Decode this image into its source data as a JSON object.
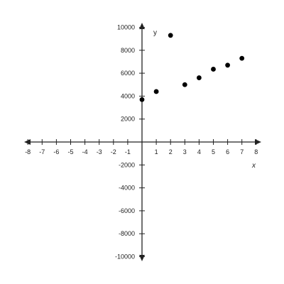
{
  "chart_data": {
    "type": "scatter",
    "xlabel": "x",
    "ylabel": "y",
    "xlim": [
      -8,
      8
    ],
    "ylim": [
      -10000,
      10000
    ],
    "x_ticks": [
      -8,
      -7,
      -6,
      -5,
      -4,
      -3,
      -2,
      -1,
      1,
      2,
      3,
      4,
      5,
      6,
      7,
      8
    ],
    "y_ticks": [
      -10000,
      -8000,
      -6000,
      -4000,
      -2000,
      2000,
      4000,
      6000,
      8000,
      10000
    ],
    "points": [
      {
        "x": 0,
        "y": 3700
      },
      {
        "x": 1,
        "y": 4400
      },
      {
        "x": 2,
        "y": 9300
      },
      {
        "x": 3,
        "y": 5000
      },
      {
        "x": 4,
        "y": 5600
      },
      {
        "x": 5,
        "y": 6350
      },
      {
        "x": 6,
        "y": 6700
      },
      {
        "x": 7,
        "y": 7300
      }
    ],
    "grid": false,
    "colors": {
      "axis": "#222222",
      "point": "#000000"
    }
  }
}
